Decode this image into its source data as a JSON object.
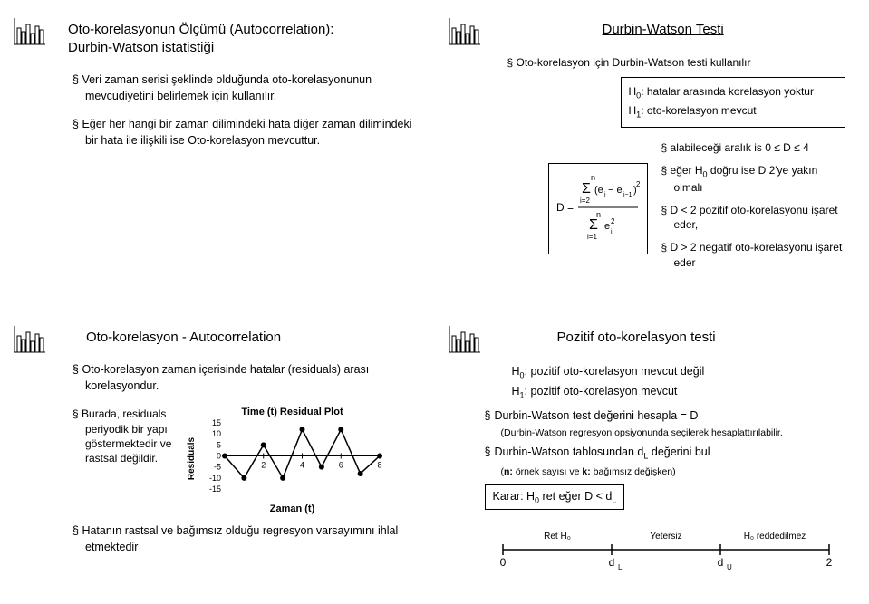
{
  "icon": {
    "bars": [
      18,
      14,
      22,
      12,
      20,
      16
    ]
  },
  "p1": {
    "title_l1": "Oto-korelasyonun Ölçümü (Autocorrelation):",
    "title_l2": "Durbin-Watson istatistiği",
    "b1": "Veri zaman serisi şeklinde olduğunda oto-korelasyonunun mevcudiyetini belirlemek için kullanılır.",
    "b2": "Eğer her hangi bir zaman dilimindeki hata diğer zaman dilimindeki bir hata ile ilişkili ise Oto-korelasyon mevcuttur."
  },
  "p2": {
    "title": "Durbin-Watson Testi",
    "intro": "Oto-korelasyon için Durbin-Watson testi kullanılır",
    "h0": "H",
    "h0sub": "0",
    "h0txt": ": hatalar arasında korelasyon yoktur",
    "h1": "H",
    "h1sub": "1",
    "h1txt": ": oto-korelasyon mevcut",
    "r1": "alabileceği aralık is 0 ≤ D ≤ 4",
    "r2": "eğer H",
    "r2sub": "0",
    "r2txt": " doğru ise D 2'ye yakın olmalı",
    "r3": "D < 2 pozitif oto-korelasyonu işaret eder,",
    "r4": "D > 2 negatif  oto-korelasyonu işaret eder"
  },
  "p3": {
    "title": "Oto-korelasyon - Autocorrelation",
    "b1": "Oto-korelasyon zaman içerisinde hatalar (residuals) arası korelasyondur.",
    "chart_title": "Time (t) Residual Plot",
    "ylabel": "Residuals",
    "yticks": [
      15,
      10,
      5,
      0,
      -5,
      -10,
      -15
    ],
    "xticks": [
      0,
      2,
      4,
      6,
      8
    ],
    "xlabel": "Zaman (t)",
    "points_y": [
      0,
      -10,
      5,
      -10,
      12,
      -5,
      12,
      -8,
      0
    ],
    "side1": "Burada, residuals periyodik bir yapı göstermektedir ve rastsal değildir.",
    "b2": "Hatanın rastsal ve bağımsız olduğu   regresyon varsayımını ihlal etmektedir"
  },
  "p4": {
    "title": "Pozitif oto-korelasyon testi",
    "h0": "H",
    "h0sub": "0",
    "h0txt": ": pozitif oto-korelasyon mevcut değil",
    "h1": "H",
    "h1sub": "1",
    "h1txt": ": pozitif oto-korelasyon mevcut",
    "s1": "Durbin-Watson test değerini hesapla = D",
    "s1sub": "(Durbin-Watson regresyon opsiyonunda seçilerek hesaplattırılabilir.",
    "s2a": "Durbin-Watson tablosundan d",
    "s2b": " değerini bul",
    "s2sub_a": "(",
    "s2sub_n": "n:",
    "s2sub_b": " örnek sayısı ve ",
    "s2sub_k": "k:",
    "s2sub_c": " bağımsız değişken)",
    "karar": "Karar:  H",
    "karar_sub": "0",
    "karar_txt": " ret eğer D < d",
    "karar_L": "L",
    "axis": {
      "labels": [
        "Ret H",
        "Yetersiz",
        "H",
        " reddedilmez"
      ],
      "ticks": [
        "0",
        "d",
        "d",
        "2"
      ],
      "ticks_sub": [
        "",
        "L",
        "U",
        ""
      ]
    }
  }
}
